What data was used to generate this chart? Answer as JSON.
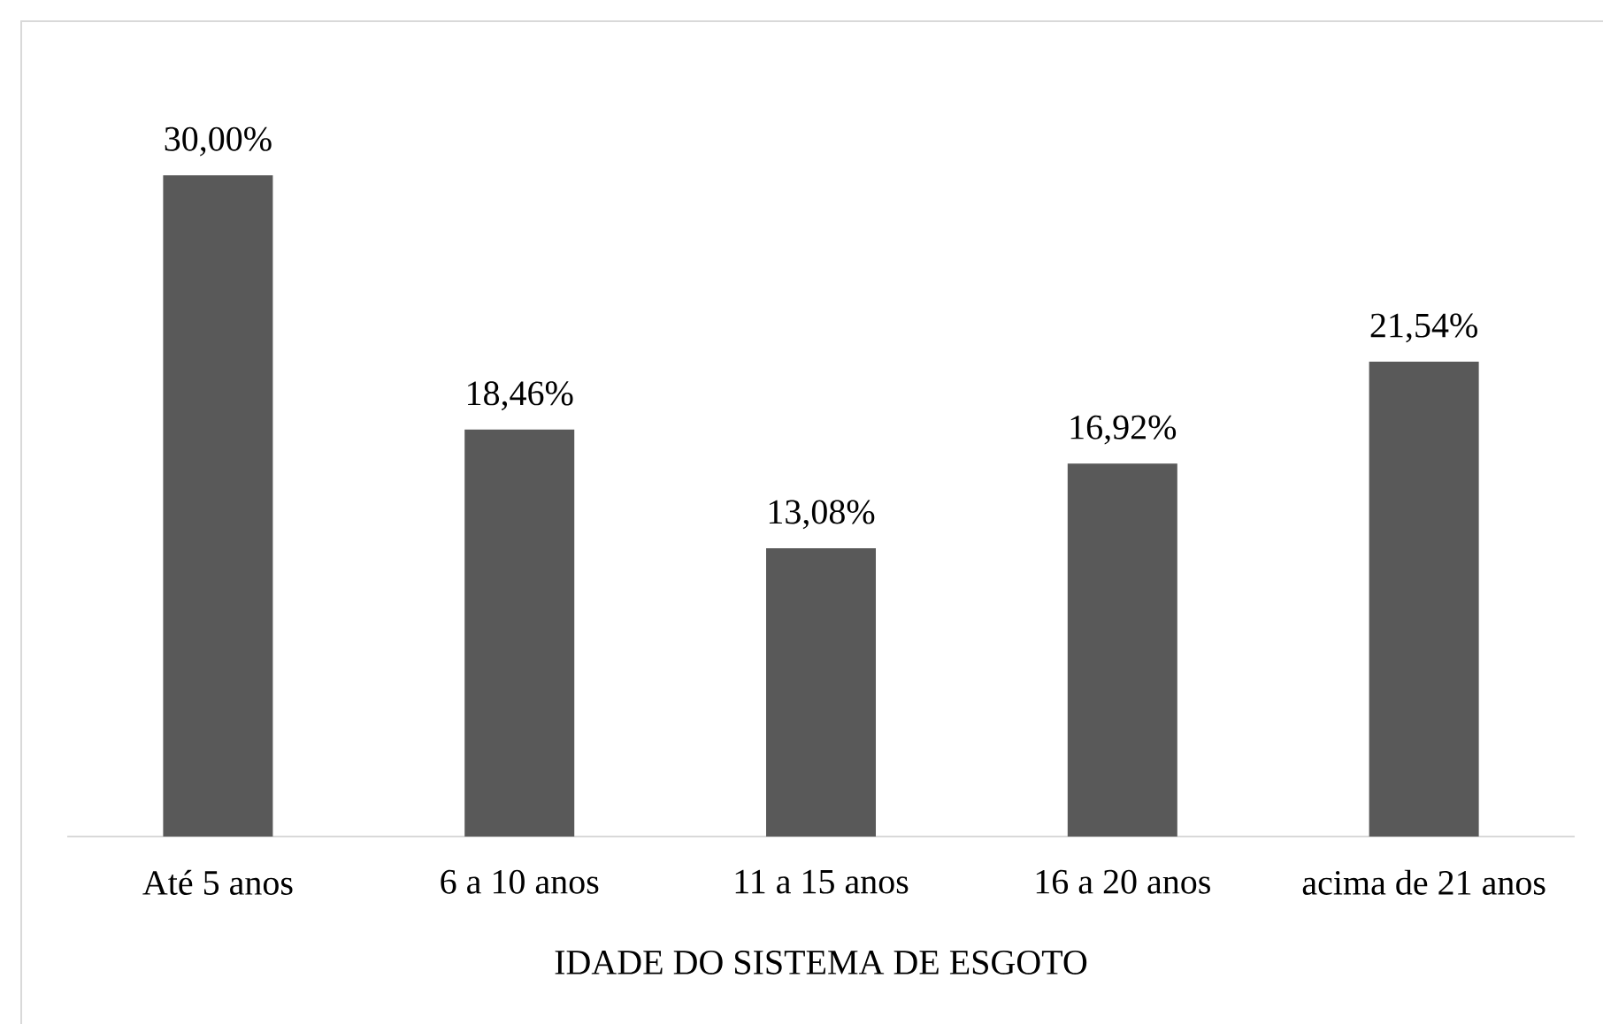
{
  "chart_data": {
    "type": "bar",
    "xlabel": "IDADE DO SISTEMA DE ESGOTO",
    "categories": [
      "Até 5 anos",
      "6 a 10 anos",
      "11 a 15 anos",
      "16 a 20 anos",
      "acima de 21 anos"
    ],
    "values": [
      30.0,
      18.46,
      13.08,
      16.92,
      21.54
    ],
    "value_labels": [
      "30,00%",
      "18,46%",
      "13,08%",
      "16,92%",
      "21,54%"
    ],
    "color": "#595959",
    "tick_labels": "x"
  }
}
